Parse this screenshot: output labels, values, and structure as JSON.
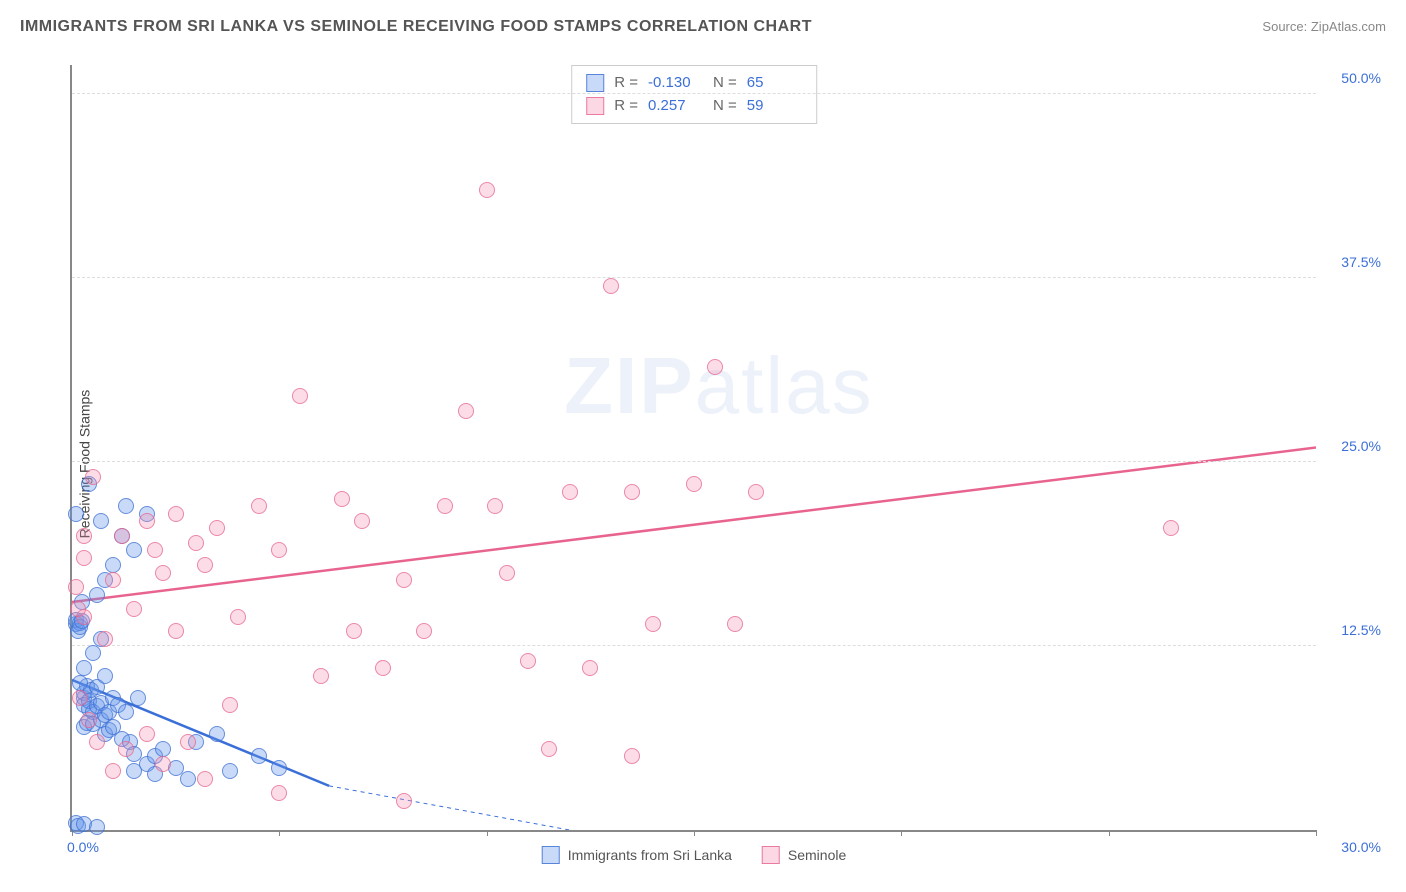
{
  "header": {
    "title": "IMMIGRANTS FROM SRI LANKA VS SEMINOLE RECEIVING FOOD STAMPS CORRELATION CHART",
    "source_label": "Source:",
    "source_name": "ZipAtlas.com"
  },
  "watermark": {
    "part1": "ZIP",
    "part2": "atlas"
  },
  "chart": {
    "type": "scatter",
    "ylabel": "Receiving Food Stamps",
    "background_color": "#ffffff",
    "grid_color": "#dddddd",
    "axis_color": "#888888",
    "xlim": [
      0,
      30
    ],
    "ylim": [
      0,
      52
    ],
    "xticks": {
      "min_label": "0.0%",
      "max_label": "30.0%",
      "marks": [
        0,
        5,
        10,
        15,
        20,
        25,
        30
      ]
    },
    "yticks": [
      {
        "value": 12.5,
        "label": "12.5%"
      },
      {
        "value": 25.0,
        "label": "25.0%"
      },
      {
        "value": 37.5,
        "label": "37.5%"
      },
      {
        "value": 50.0,
        "label": "50.0%"
      }
    ],
    "marker_radius": 8,
    "series": [
      {
        "id": "blue",
        "name": "Immigrants from Sri Lanka",
        "color_fill": "rgba(99,149,236,0.35)",
        "color_stroke": "#3b6fd8",
        "R": "-0.130",
        "N": "65",
        "trend": {
          "x1": 0,
          "y1": 10.2,
          "x2": 6.2,
          "y2": 3.0,
          "dash_x2": 12.0,
          "dash_y2": 0,
          "width": 2.5
        },
        "points": [
          [
            0.1,
            14.0
          ],
          [
            0.1,
            14.3
          ],
          [
            0.15,
            13.5
          ],
          [
            0.2,
            14.1
          ],
          [
            0.2,
            13.8
          ],
          [
            0.25,
            14.2
          ],
          [
            0.3,
            9.0
          ],
          [
            0.3,
            9.3
          ],
          [
            0.3,
            8.5
          ],
          [
            0.35,
            9.8
          ],
          [
            0.4,
            8.2
          ],
          [
            0.4,
            8.8
          ],
          [
            0.45,
            9.5
          ],
          [
            0.3,
            7.0
          ],
          [
            0.35,
            7.3
          ],
          [
            0.5,
            8.0
          ],
          [
            0.5,
            7.2
          ],
          [
            0.6,
            8.4
          ],
          [
            0.6,
            9.7
          ],
          [
            0.7,
            7.5
          ],
          [
            0.7,
            8.6
          ],
          [
            0.8,
            7.8
          ],
          [
            0.8,
            6.5
          ],
          [
            0.9,
            8.0
          ],
          [
            0.9,
            6.8
          ],
          [
            1.0,
            9.0
          ],
          [
            1.0,
            7.0
          ],
          [
            1.1,
            8.5
          ],
          [
            1.2,
            6.2
          ],
          [
            1.3,
            8.0
          ],
          [
            1.4,
            6.0
          ],
          [
            1.5,
            5.2
          ],
          [
            1.5,
            4.0
          ],
          [
            1.6,
            9.0
          ],
          [
            1.8,
            4.5
          ],
          [
            2.0,
            5.0
          ],
          [
            2.0,
            3.8
          ],
          [
            2.2,
            5.5
          ],
          [
            2.5,
            4.2
          ],
          [
            2.8,
            3.5
          ],
          [
            3.0,
            6.0
          ],
          [
            3.5,
            6.5
          ],
          [
            3.8,
            4.0
          ],
          [
            4.5,
            5.0
          ],
          [
            5.0,
            4.2
          ],
          [
            0.3,
            11.0
          ],
          [
            0.5,
            12.0
          ],
          [
            0.7,
            13.0
          ],
          [
            0.8,
            10.5
          ],
          [
            0.2,
            10.0
          ],
          [
            0.25,
            15.5
          ],
          [
            0.6,
            16.0
          ],
          [
            0.8,
            17.0
          ],
          [
            1.0,
            18.0
          ],
          [
            0.7,
            21.0
          ],
          [
            1.2,
            20.0
          ],
          [
            1.3,
            22.0
          ],
          [
            0.1,
            21.5
          ],
          [
            0.4,
            23.5
          ],
          [
            1.5,
            19.0
          ],
          [
            1.8,
            21.5
          ],
          [
            0.1,
            0.5
          ],
          [
            0.15,
            0.3
          ],
          [
            0.3,
            0.4
          ],
          [
            0.6,
            0.2
          ]
        ]
      },
      {
        "id": "pink",
        "name": "Seminole",
        "color_fill": "rgba(244,143,177,0.3)",
        "color_stroke": "#e8648f",
        "R": "0.257",
        "N": "59",
        "trend": {
          "x1": 0,
          "y1": 15.5,
          "x2": 30,
          "y2": 26.0,
          "width": 2.5
        },
        "points": [
          [
            0.3,
            14.5
          ],
          [
            0.5,
            24.0
          ],
          [
            0.8,
            13.0
          ],
          [
            1.0,
            17.0
          ],
          [
            1.2,
            20.0
          ],
          [
            1.5,
            15.0
          ],
          [
            1.8,
            21.0
          ],
          [
            2.0,
            19.0
          ],
          [
            2.2,
            17.5
          ],
          [
            2.5,
            13.5
          ],
          [
            2.5,
            21.5
          ],
          [
            3.0,
            19.5
          ],
          [
            3.2,
            18.0
          ],
          [
            3.5,
            20.5
          ],
          [
            3.8,
            8.5
          ],
          [
            4.0,
            14.5
          ],
          [
            4.5,
            22.0
          ],
          [
            5.0,
            19.0
          ],
          [
            5.0,
            2.5
          ],
          [
            5.5,
            29.5
          ],
          [
            6.0,
            10.5
          ],
          [
            6.5,
            22.5
          ],
          [
            6.8,
            13.5
          ],
          [
            7.0,
            21.0
          ],
          [
            7.5,
            11.0
          ],
          [
            8.0,
            17.0
          ],
          [
            8.0,
            2.0
          ],
          [
            8.5,
            13.5
          ],
          [
            9.0,
            22.0
          ],
          [
            9.5,
            28.5
          ],
          [
            10.0,
            43.5
          ],
          [
            10.2,
            22.0
          ],
          [
            10.5,
            17.5
          ],
          [
            11.0,
            11.5
          ],
          [
            11.5,
            5.5
          ],
          [
            12.0,
            23.0
          ],
          [
            12.5,
            11.0
          ],
          [
            13.0,
            37.0
          ],
          [
            13.5,
            23.0
          ],
          [
            13.5,
            5.0
          ],
          [
            14.0,
            14.0
          ],
          [
            15.0,
            23.5
          ],
          [
            15.5,
            31.5
          ],
          [
            16.0,
            14.0
          ],
          [
            16.5,
            23.0
          ],
          [
            26.5,
            20.5
          ],
          [
            0.2,
            9.0
          ],
          [
            0.4,
            7.5
          ],
          [
            0.6,
            6.0
          ],
          [
            1.0,
            4.0
          ],
          [
            1.3,
            5.5
          ],
          [
            1.8,
            6.5
          ],
          [
            2.2,
            4.5
          ],
          [
            2.8,
            6.0
          ],
          [
            3.2,
            3.5
          ],
          [
            0.1,
            16.5
          ],
          [
            0.15,
            15.0
          ],
          [
            0.3,
            18.5
          ],
          [
            0.3,
            20.0
          ]
        ]
      }
    ],
    "bottom_legend": [
      {
        "swatch": "blue",
        "label": "Immigrants from Sri Lanka"
      },
      {
        "swatch": "pink",
        "label": "Seminole"
      }
    ]
  }
}
